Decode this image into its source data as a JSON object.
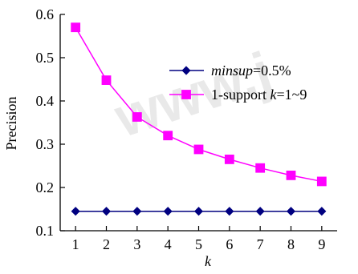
{
  "chart_data": {
    "type": "line",
    "xlabel": "k",
    "ylabel": "Precision",
    "x": [
      1,
      2,
      3,
      4,
      5,
      6,
      7,
      8,
      9
    ],
    "xlim": [
      0.5,
      9.5
    ],
    "ylim": [
      0.1,
      0.6
    ],
    "yticks": [
      "0.1",
      "0.2",
      "0.3",
      "0.4",
      "0.5",
      "0.6"
    ],
    "xticks": [
      "1",
      "2",
      "3",
      "4",
      "5",
      "6",
      "7",
      "8",
      "9"
    ],
    "grid": false,
    "legend_position": "upper-right",
    "series": [
      {
        "name": "minsup=0.5%",
        "legend_parts": [
          {
            "text": "minsup",
            "italic": true
          },
          {
            "text": "=0.5%",
            "italic": false
          }
        ],
        "marker": "diamond",
        "color": "#000080",
        "values": [
          0.145,
          0.145,
          0.145,
          0.145,
          0.145,
          0.145,
          0.145,
          0.145,
          0.145
        ]
      },
      {
        "name": "1-support k=1~9",
        "legend_parts": [
          {
            "text": "1-support ",
            "italic": false
          },
          {
            "text": "k",
            "italic": true
          },
          {
            "text": "=1~9",
            "italic": false
          }
        ],
        "marker": "square",
        "color": "#ff00ff",
        "values": [
          0.57,
          0.448,
          0.363,
          0.32,
          0.288,
          0.265,
          0.245,
          0.228,
          0.214
        ]
      }
    ]
  }
}
